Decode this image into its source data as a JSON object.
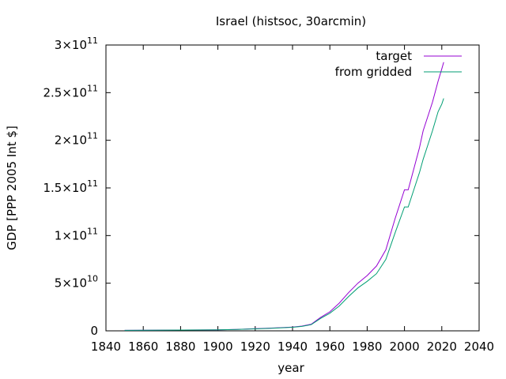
{
  "chart_data": {
    "type": "line",
    "title": "Israel (histsoc, 30arcmin)",
    "xlabel": "year",
    "ylabel": "GDP [PPP 2005 Int $]",
    "xlim": [
      1840,
      2040
    ],
    "ylim": [
      0,
      300000000000
    ],
    "grid": false,
    "legend_position": "top-right",
    "x_ticks": [
      1840,
      1860,
      1880,
      1900,
      1920,
      1940,
      1960,
      1980,
      2000,
      2020,
      2040
    ],
    "x_tick_labels": [
      "1840",
      "1860",
      "1880",
      "1900",
      "1920",
      "1940",
      "1960",
      "1980",
      "2000",
      "2020",
      "2040"
    ],
    "y_ticks": [
      {
        "value": 0,
        "mantissa": "0",
        "exponent": ""
      },
      {
        "value": 50000000000,
        "mantissa": "5×10",
        "exponent": "10"
      },
      {
        "value": 100000000000,
        "mantissa": "1×10",
        "exponent": "11"
      },
      {
        "value": 150000000000,
        "mantissa": "1.5×10",
        "exponent": "11"
      },
      {
        "value": 200000000000,
        "mantissa": "2×10",
        "exponent": "11"
      },
      {
        "value": 250000000000,
        "mantissa": "2.5×10",
        "exponent": "11"
      },
      {
        "value": 300000000000,
        "mantissa": "3×10",
        "exponent": "11"
      }
    ],
    "series": [
      {
        "name": "target",
        "color": "#9400d3",
        "x": [
          1850,
          1900,
          1910,
          1920,
          1930,
          1940,
          1945,
          1950,
          1955,
          1960,
          1965,
          1970,
          1975,
          1980,
          1985,
          1990,
          1995,
          2000,
          2002,
          2005,
          2008,
          2010,
          2013,
          2015,
          2018,
          2020,
          2021
        ],
        "y": [
          500000000,
          1000000000,
          1500000000,
          2200000000,
          3000000000,
          4000000000,
          5000000000,
          7000000000,
          14000000000,
          20000000000,
          29000000000,
          40000000000,
          50000000000,
          58000000000,
          68000000000,
          85000000000,
          118000000000,
          148000000000,
          148000000000,
          170000000000,
          192000000000,
          210000000000,
          228000000000,
          240000000000,
          262000000000,
          275000000000,
          282000000000
        ]
      },
      {
        "name": "from gridded",
        "color": "#009e73",
        "x": [
          1850,
          1900,
          1910,
          1920,
          1930,
          1940,
          1945,
          1950,
          1955,
          1960,
          1965,
          1970,
          1975,
          1980,
          1985,
          1990,
          1995,
          2000,
          2002,
          2005,
          2008,
          2010,
          2013,
          2015,
          2018,
          2020,
          2021
        ],
        "y": [
          500000000,
          1000000000,
          1500000000,
          2100000000,
          2800000000,
          3700000000,
          4600000000,
          6500000000,
          13000000000,
          18500000000,
          26000000000,
          36000000000,
          45000000000,
          52000000000,
          60000000000,
          75000000000,
          103000000000,
          130000000000,
          130000000000,
          148000000000,
          166000000000,
          180000000000,
          198000000000,
          210000000000,
          230000000000,
          238000000000,
          244000000000
        ]
      }
    ]
  }
}
